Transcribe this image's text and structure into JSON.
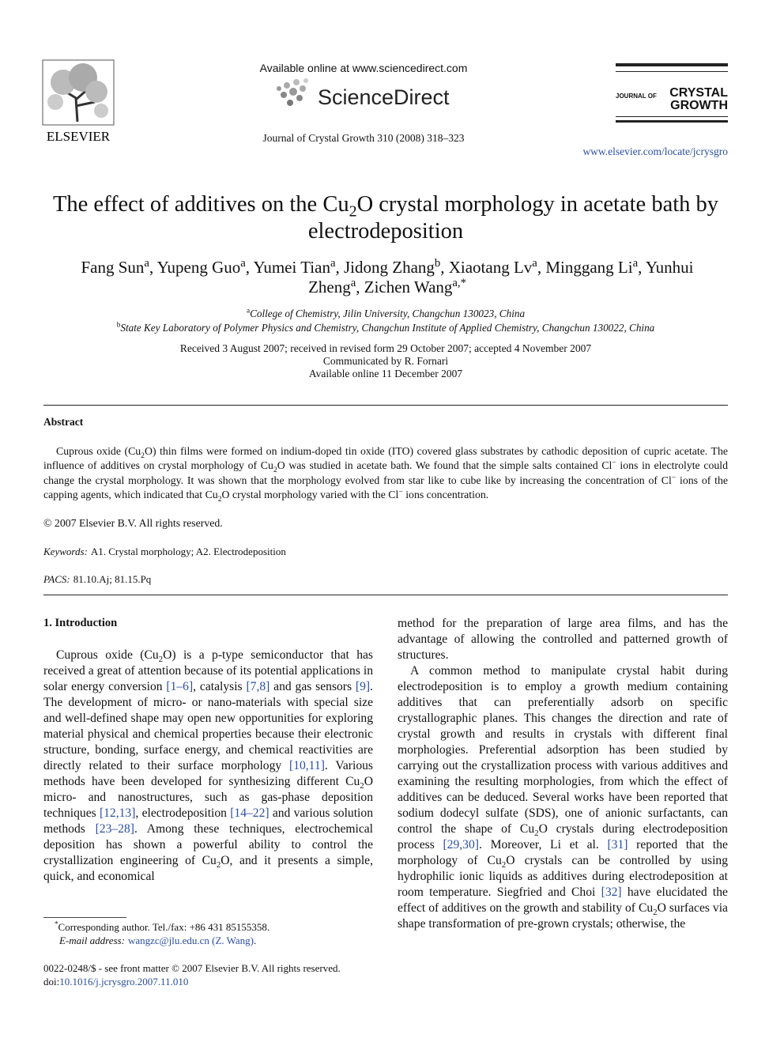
{
  "header": {
    "available": "Available online at www.sciencedirect.com",
    "sciencedirect": "ScienceDirect",
    "elsevier": "ELSEVIER",
    "citation": "Journal of Crystal Growth 310 (2008) 318–323",
    "journal_small": "JOURNAL OF",
    "journal_large_1": "CRYSTAL",
    "journal_large_2": "GROWTH",
    "url": "www.elsevier.com/locate/jcrysgro"
  },
  "title": [
    "The effect of additives on the Cu",
    {
      "sub": "2"
    },
    "O crystal morphology in acetate bath by electrodeposition"
  ],
  "authors": [
    "Fang Sun",
    {
      "sup": "a"
    },
    ", Yupeng Guo",
    {
      "sup": "a"
    },
    ", Yumei Tian",
    {
      "sup": "a"
    },
    ", Jidong Zhang",
    {
      "sup": "b"
    },
    ", Xiaotang Lv",
    {
      "sup": "a"
    },
    ", Minggang Li",
    {
      "sup": "a"
    },
    ", Yunhui Zheng",
    {
      "sup": "a"
    },
    ", Zichen Wang",
    {
      "sup": "a,*"
    }
  ],
  "affiliations": [
    [
      {
        "sup": "a"
      },
      {
        "em": "College of Chemistry, Jilin University, Changchun 130023, China"
      }
    ],
    [
      {
        "sup": "b"
      },
      {
        "em": "State Key Laboratory of Polymer Physics and Chemistry, Changchun Institute of Applied Chemistry, Changchun 130022, China"
      }
    ]
  ],
  "history": [
    "Received 3 August 2007; received in revised form 29 October 2007; accepted 4 November 2007",
    "Communicated by R. Fornari",
    "Available online 11 December 2007"
  ],
  "abstract": {
    "heading": "Abstract",
    "body": [
      "Cuprous oxide (Cu",
      {
        "sub": "2"
      },
      "O) thin films were formed on indium-doped tin oxide (ITO) covered glass substrates by cathodic deposition of cupric acetate. The influence of additives on crystal morphology of Cu",
      {
        "sub": "2"
      },
      "O was studied in acetate bath. We found that the simple salts contained Cl",
      {
        "sup": "−"
      },
      " ions in electrolyte could change the crystal morphology. It was shown that the morphology evolved from star like to cube like by increasing the concentration of Cl",
      {
        "sup": "−"
      },
      " ions of the capping agents, which indicated that Cu",
      {
        "sub": "2"
      },
      "O crystal morphology varied with the Cl",
      {
        "sup": "−"
      },
      " ions concentration."
    ],
    "copyright": "© 2007 Elsevier B.V. All rights reserved."
  },
  "keywords": [
    {
      "em": "Keywords:"
    },
    "A1. Crystal morphology; A2. Electrodeposition"
  ],
  "pacs": [
    {
      "em": "PACS:"
    },
    "81.10.Aj; 81.15.Pq"
  ],
  "section": "1.  Introduction",
  "left_column": [
    [
      "Cuprous oxide (Cu",
      {
        "sub": "2"
      },
      "O) is a p-type semiconductor that has received a great of attention because of its potential applications in solar energy conversion ",
      {
        "ref": "[1–6]"
      },
      ", catalysis ",
      {
        "ref": "[7,8]"
      },
      " and gas sensors ",
      {
        "ref": "[9]"
      },
      ". The development of micro- or nano-materials with special size and well-defined shape may open new opportunities for exploring material physical and chemical properties because their electronic structure, bonding, surface energy, and chemical reactivities are directly related to their surface morphology ",
      {
        "ref": "[10,11]"
      },
      ". Various methods have been developed for synthesizing different Cu",
      {
        "sub": "2"
      },
      "O micro- and nanostructures, such as gas-phase deposition techniques ",
      {
        "ref": "[12,13]"
      },
      ", electrodeposition ",
      {
        "ref": "[14–22]"
      },
      " and various solution methods ",
      {
        "ref": "[23–28]"
      },
      ". Among these techniques, electrochemical deposition has shown a powerful ability to control the crystallization engineering of Cu",
      {
        "sub": "2"
      },
      "O, and it presents a simple, quick, and economical"
    ]
  ],
  "right_column": [
    [
      "method for the preparation of large area films, and has the advantage of allowing the controlled and patterned growth of structures."
    ],
    [
      "A common method to manipulate crystal habit during electrodeposition is to employ a growth medium containing additives that can preferentially adsorb on specific crystallographic planes. This changes the direction and rate of crystal growth and results in crystals with different final morphologies. Preferential adsorption has been studied by carrying out the crystallization process with various additives and examining the resulting morphologies, from which the effect of additives can be deduced. Several works have been reported that sodium dodecyl sulfate (SDS), one of anionic surfactants, can control the shape of Cu",
      {
        "sub": "2"
      },
      "O crystals during electrodeposition process ",
      {
        "ref": "[29,30]"
      },
      ". Moreover, Li et al. ",
      {
        "ref": "[31]"
      },
      " reported that the morphology of Cu",
      {
        "sub": "2"
      },
      "O crystals can be controlled by using hydrophilic ionic liquids as additives during electrodeposition at room temperature. Siegfried and Choi ",
      {
        "ref": "[32]"
      },
      " have elucidated the effect of additives on the growth and stability of Cu",
      {
        "sub": "2"
      },
      "O surfaces via shape transformation of pre-grown crystals; otherwise, the"
    ]
  ],
  "footnotes": [
    [
      {
        "sup": "*"
      },
      "Corresponding author. Tel./fax: +86 431 85155358."
    ],
    [
      {
        "em": "E-mail address:"
      },
      {
        "ref": "wangzc@jlu.edu.cn (Z. Wang)"
      },
      "."
    ]
  ],
  "front_matter": [
    "0022-0248/$ - see front matter © 2007 Elsevier B.V. All rights reserved."
  ],
  "doi": [
    "doi:",
    {
      "ref": "10.1016/j.jcrysgro.2007.11.010"
    }
  ]
}
